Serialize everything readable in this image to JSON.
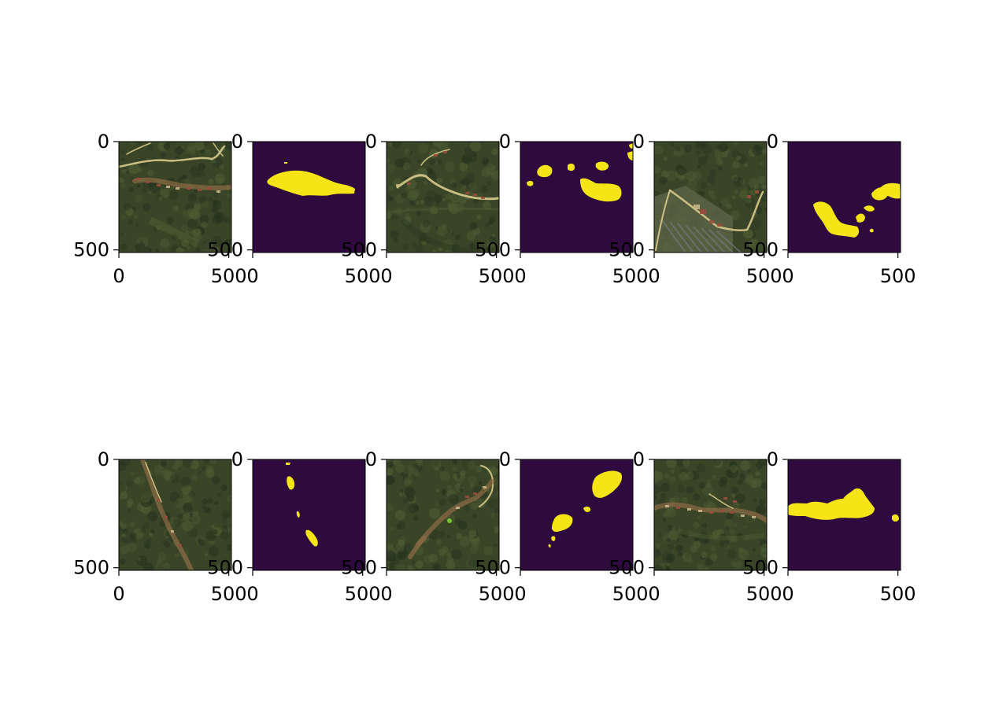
{
  "figure": {
    "rows": 2,
    "cols": 6,
    "layout": "grid of image-mask pairs"
  },
  "colors": {
    "mask_background": "#2f0a3f",
    "mask_foreground": "#f6e516",
    "photo_base": "#3a4528",
    "photo_dark": "#27341e",
    "photo_soil": "#8a6a44",
    "photo_road": "#d8cb8c",
    "photo_roof": "#9c4a3c",
    "axis": "#000000"
  },
  "chart_data": {
    "type": "heatmap",
    "title": "",
    "xlabel": "",
    "ylabel": "",
    "xlim": [
      0,
      512
    ],
    "ylim": [
      512,
      0
    ],
    "xticks": [
      0,
      500
    ],
    "yticks": [
      0,
      500
    ],
    "x_tick_labels": [
      "0",
      "500"
    ],
    "y_tick_labels": [
      "0",
      "500"
    ],
    "panels": [
      {
        "row": 0,
        "col": 0,
        "kind": "satellite-image",
        "scene": "village"
      },
      {
        "row": 0,
        "col": 1,
        "kind": "binary-mask",
        "mask": 1
      },
      {
        "row": 0,
        "col": 2,
        "kind": "satellite-image",
        "scene": "road"
      },
      {
        "row": 0,
        "col": 3,
        "kind": "binary-mask",
        "mask": 2
      },
      {
        "row": 0,
        "col": 4,
        "kind": "satellite-image",
        "scene": "fields"
      },
      {
        "row": 0,
        "col": 5,
        "kind": "binary-mask",
        "mask": 3
      },
      {
        "row": 1,
        "col": 0,
        "kind": "satellite-image",
        "scene": "ravine"
      },
      {
        "row": 1,
        "col": 1,
        "kind": "binary-mask",
        "mask": 4
      },
      {
        "row": 1,
        "col": 2,
        "kind": "satellite-image",
        "scene": "hillside"
      },
      {
        "row": 1,
        "col": 3,
        "kind": "binary-mask",
        "mask": 5
      },
      {
        "row": 1,
        "col": 4,
        "kind": "satellite-image",
        "scene": "settlement"
      },
      {
        "row": 1,
        "col": 5,
        "kind": "binary-mask",
        "mask": 6
      }
    ]
  }
}
